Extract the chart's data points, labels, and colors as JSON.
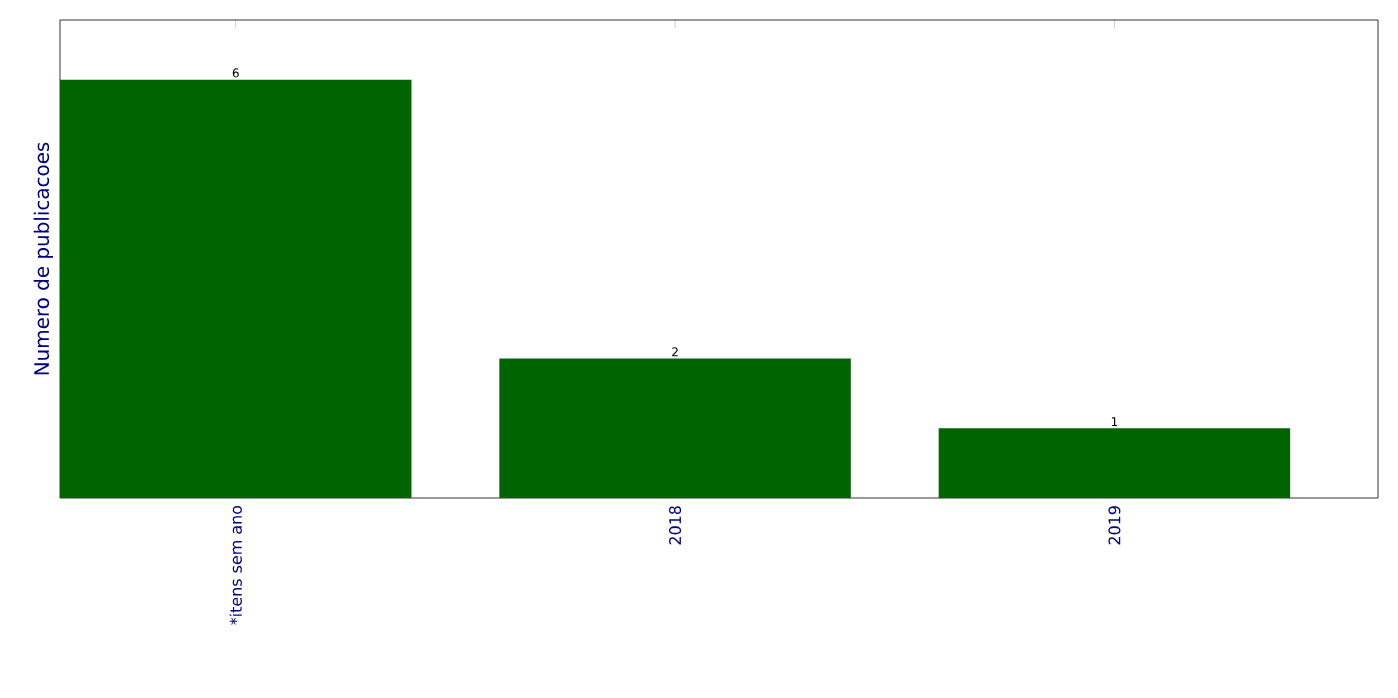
{
  "chart_data": {
    "type": "bar",
    "ylabel": "Numero de publicacoes",
    "categories": [
      "*itens sem ano",
      "2018",
      "2019"
    ],
    "values": [
      6,
      2,
      1
    ],
    "color": "#006400",
    "data_labels": true
  }
}
